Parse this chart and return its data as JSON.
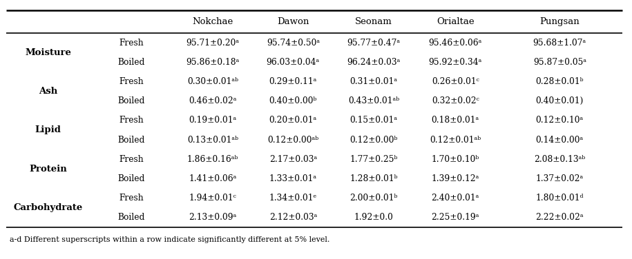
{
  "columns": [
    "Nokchae",
    "Dawon",
    "Seonam",
    "Orialtae",
    "Pungsan"
  ],
  "row_groups": [
    {
      "label": "Moisture",
      "rows": [
        [
          "Fresh",
          "95.71±0.20ᵃ",
          "95.74±0.50ᵃ",
          "95.77±0.47ᵃ",
          "95.46±0.06ᵃ",
          "95.68±1.07ᵃ"
        ],
        [
          "Boiled",
          "95.86±0.18ᵃ",
          "96.03±0.04ᵃ",
          "96.24±0.03ᵃ",
          "95.92±0.34ᵃ",
          "95.87±0.05ᵃ"
        ]
      ]
    },
    {
      "label": "Ash",
      "rows": [
        [
          "Fresh",
          "0.30±0.01ᵃᵇ",
          "0.29±0.11ᵃ",
          "0.31±0.01ᵃ",
          "0.26±0.01ᶜ",
          "0.28±0.01ᵇ"
        ],
        [
          "Boiled",
          "0.46±0.02ᵃ",
          "0.40±0.00ᵇ",
          "0.43±0.01ᵃᵇ",
          "0.32±0.02ᶜ",
          "0.40±0.01)"
        ]
      ]
    },
    {
      "label": "Lipid",
      "rows": [
        [
          "Fresh",
          "0.19±0.01ᵃ",
          "0.20±0.01ᵃ",
          "0.15±0.01ᵃ",
          "0.18±0.01ᵃ",
          "0.12±0.10ᵃ"
        ],
        [
          "Boiled",
          "0.13±0.01ᵃᵇ",
          "0.12±0.00ᵃᵇ",
          "0.12±0.00ᵇ",
          "0.12±0.01ᵃᵇ",
          "0.14±0.00ᵃ"
        ]
      ]
    },
    {
      "label": "Protein",
      "rows": [
        [
          "Fresh",
          "1.86±0.16ᵃᵇ",
          "2.17±0.03ᵃ",
          "1.77±0.25ᵇ",
          "1.70±0.10ᵇ",
          "2.08±0.13ᵃᵇ"
        ],
        [
          "Boiled",
          "1.41±0.06ᵃ",
          "1.33±0.01ᵃ",
          "1.28±0.01ᵇ",
          "1.39±0.12ᵃ",
          "1.37±0.02ᵃ"
        ]
      ]
    },
    {
      "label": "Carbohydrate",
      "rows": [
        [
          "Fresh",
          "1.94±0.01ᶜ",
          "1.34±0.01ᵉ",
          "2.00±0.01ᵇ",
          "2.40±0.01ᵃ",
          "1.80±0.01ᵈ"
        ],
        [
          "Boiled",
          "2.13±0.09ᵃ",
          "2.12±0.03ᵃ",
          "1.92±0.0",
          "2.25±0.19ᵃ",
          "2.22±0.02ᵃ"
        ]
      ]
    }
  ],
  "footnote": "a-d Different superscripts within a row indicate significantly different at 5% level.",
  "col_header_fontsize": 9.5,
  "cell_fontsize": 8.8,
  "label_fontsize": 9.5,
  "background_color": "#ffffff",
  "figwidth": 9.15,
  "figheight": 3.76,
  "dpi": 100
}
